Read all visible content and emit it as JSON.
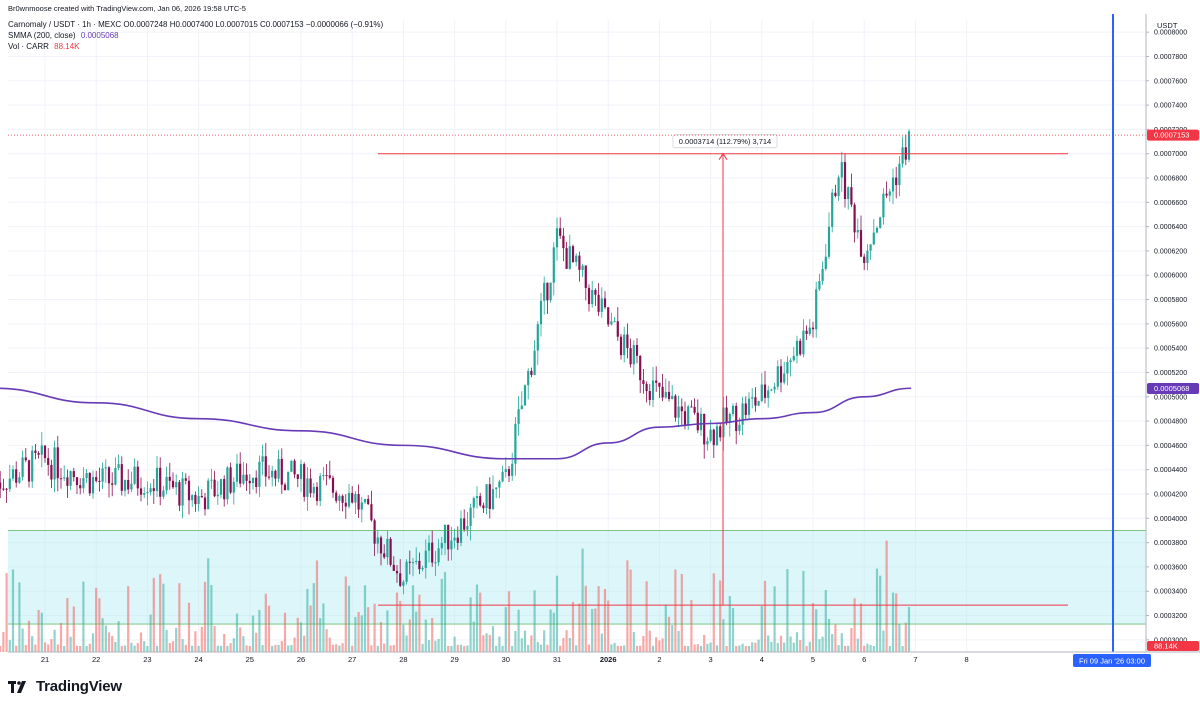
{
  "header": {
    "credit": "Br0wnmoose created with TradingView.com, Jan 06, 2026 19:58 UTC-5",
    "symbol_line": "Carnomaly / USDT · 1h · MEXC  O0.0007248  H0.0007400  L0.0007015  C0.0007153  −0.0000066 (−0.91%)",
    "sma_label": "SMMA (200, close)",
    "sma_value": "0.0005068",
    "vol_label": "Vol · CARR",
    "vol_value": "88.14K"
  },
  "price_axis": {
    "currency": "USDT",
    "ticks": [
      "0.0008000",
      "0.0007800",
      "0.0007600",
      "0.0007400",
      "0.0007200",
      "0.0007000",
      "0.0006800",
      "0.0006600",
      "0.0006400",
      "0.0006200",
      "0.0006000",
      "0.0005800",
      "0.0005600",
      "0.0005400",
      "0.0005200",
      "0.0005000",
      "0.0004800",
      "0.0004600",
      "0.0004400",
      "0.0004200",
      "0.0004000",
      "0.0003800",
      "0.0003600",
      "0.0003400",
      "0.0003200",
      "0.0003000"
    ],
    "last_price": "0.0007153",
    "sma_badge": "0.0005068",
    "vol_badge": "88.14K"
  },
  "time_axis": {
    "ticks": [
      "21",
      "22",
      "23",
      "24",
      "25",
      "26",
      "27",
      "28",
      "29",
      "30",
      "31",
      "2026",
      "2",
      "3",
      "4",
      "5",
      "6",
      "7",
      "8"
    ],
    "cursor_label": "Fri 09 Jan '26   03:00"
  },
  "measure": {
    "label": "0.0003714 (112.79%) 3,714"
  },
  "brand": {
    "name": "TradingView"
  },
  "colors": {
    "up": "#26a69a",
    "down": "#880e4f",
    "sma": "#673ab7",
    "cursor": "#2962ff",
    "measure": "#f23645",
    "last": "#f23645",
    "zone": "#b2ebf2"
  },
  "chart_data": {
    "type": "candlestick",
    "title": "Carnomaly / USDT · 1h · MEXC",
    "x_range": [
      "2025-12-20",
      "2026-01-09"
    ],
    "ylim": [
      0.00029,
      0.00081
    ],
    "series": [
      {
        "name": "SMMA (200, close)",
        "type": "line",
        "points": [
          [
            "2025-12-20",
            0.000507
          ],
          [
            "2025-12-22",
            0.000495
          ],
          [
            "2025-12-24",
            0.000482
          ],
          [
            "2025-12-26",
            0.000472
          ],
          [
            "2025-12-28",
            0.00046
          ],
          [
            "2025-12-30",
            0.000449
          ],
          [
            "2025-12-31",
            0.000449
          ],
          [
            "2026-01-01",
            0.000462
          ],
          [
            "2026-01-02",
            0.000475
          ],
          [
            "2026-01-03",
            0.000478
          ],
          [
            "2026-01-04",
            0.000482
          ],
          [
            "2026-01-05",
            0.000487
          ],
          [
            "2026-01-06",
            0.0005
          ],
          [
            "2026-01-06T22:00",
            0.000507
          ]
        ]
      }
    ],
    "price_path": [
      [
        "2025-12-20",
        0.000428
      ],
      [
        "2025-12-21",
        0.000448
      ],
      [
        "2025-12-22",
        0.00043
      ],
      [
        "2025-12-23",
        0.000432
      ],
      [
        "2025-12-24",
        0.000416
      ],
      [
        "2025-12-25",
        0.00044
      ],
      [
        "2025-12-26",
        0.000432
      ],
      [
        "2025-12-27",
        0.00042
      ],
      [
        "2025-12-28",
        0.00035
      ],
      [
        "2025-12-29",
        0.00039
      ],
      [
        "2025-12-30",
        0.00043
      ],
      [
        "2025-12-31",
        0.00063
      ],
      [
        "2026-01-01",
        0.00056
      ],
      [
        "2026-01-02",
        0.0005
      ],
      [
        "2026-01-03",
        0.00047
      ],
      [
        "2026-01-04",
        0.0005
      ],
      [
        "2026-01-05",
        0.00056
      ],
      [
        "2026-01-05T12:00",
        0.00069
      ],
      [
        "2026-01-06",
        0.00062
      ],
      [
        "2026-01-06T22:00",
        0.000715
      ]
    ],
    "annotations": [
      {
        "type": "horizontal",
        "y": 0.0007
      },
      {
        "type": "horizontal",
        "y": 0.0003286
      },
      {
        "type": "price_range",
        "from": 0.0003286,
        "to": 0.0007,
        "label": "0.0003714 (112.79%) 3,714"
      },
      {
        "type": "zone",
        "from": 0.000313,
        "to": 0.00039
      }
    ],
    "last": 0.0007153,
    "volume_last": "88.14K",
    "grid": true
  }
}
